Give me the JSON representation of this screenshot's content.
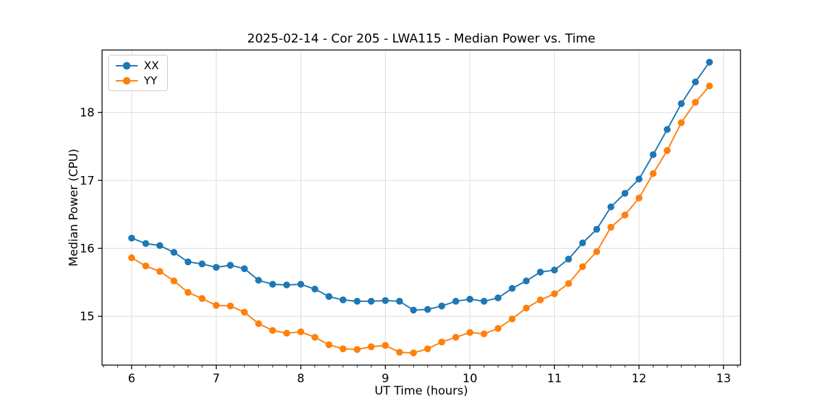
{
  "chart_data": {
    "type": "line",
    "title": "2025-02-14 - Cor 205 - LWA115 - Median Power vs. Time",
    "xlabel": "UT Time (hours)",
    "ylabel": "Median Power (CPU)",
    "xlim": [
      5.65,
      13.2
    ],
    "ylim": [
      14.28,
      18.92
    ],
    "xticks": [
      6,
      7,
      8,
      9,
      10,
      11,
      12,
      13
    ],
    "yticks": [
      15,
      16,
      17,
      18
    ],
    "x_minor_tick_interval": 0.1667,
    "grid": true,
    "grid_color": "#dcdcdc",
    "spine_color": "#000000",
    "legend_position": "upper-left",
    "x": [
      6.0,
      6.167,
      6.333,
      6.5,
      6.667,
      6.833,
      7.0,
      7.167,
      7.333,
      7.5,
      7.667,
      7.833,
      8.0,
      8.167,
      8.333,
      8.5,
      8.667,
      8.833,
      9.0,
      9.167,
      9.333,
      9.5,
      9.667,
      9.833,
      10.0,
      10.167,
      10.333,
      10.5,
      10.667,
      10.833,
      11.0,
      11.167,
      11.333,
      11.5,
      11.667,
      11.833,
      12.0,
      12.167,
      12.333,
      12.5,
      12.667,
      12.833
    ],
    "series": [
      {
        "name": "XX",
        "color": "#1f77b4",
        "values": [
          16.15,
          16.07,
          16.04,
          15.94,
          15.8,
          15.77,
          15.72,
          15.75,
          15.7,
          15.53,
          15.47,
          15.46,
          15.47,
          15.4,
          15.29,
          15.24,
          15.22,
          15.22,
          15.23,
          15.22,
          15.09,
          15.1,
          15.15,
          15.22,
          15.25,
          15.22,
          15.27,
          15.41,
          15.52,
          15.65,
          15.68,
          15.84,
          16.08,
          16.28,
          16.61,
          16.81,
          17.02,
          17.38,
          17.75,
          18.13,
          18.45,
          18.74
        ]
      },
      {
        "name": "YY",
        "color": "#ff7f0e",
        "values": [
          15.86,
          15.74,
          15.66,
          15.52,
          15.35,
          15.26,
          15.16,
          15.15,
          15.06,
          14.89,
          14.79,
          14.75,
          14.77,
          14.69,
          14.58,
          14.52,
          14.51,
          14.55,
          14.57,
          14.47,
          14.46,
          14.52,
          14.62,
          14.69,
          14.76,
          14.74,
          14.82,
          14.96,
          15.12,
          15.24,
          15.33,
          15.48,
          15.73,
          15.95,
          16.31,
          16.49,
          16.74,
          17.1,
          17.44,
          17.85,
          18.15,
          18.39
        ]
      }
    ]
  }
}
